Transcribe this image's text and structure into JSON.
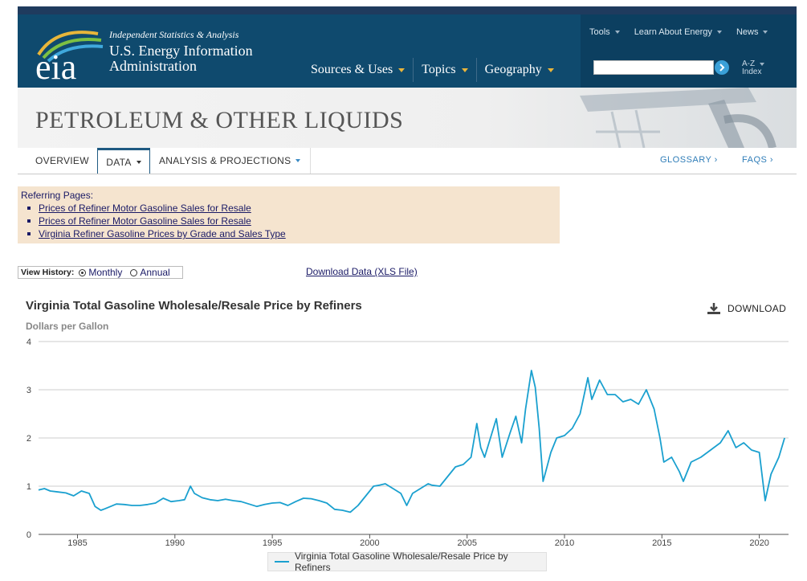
{
  "header": {
    "tagline": "Independent Statistics & Analysis",
    "org_name": "U.S. Energy Information Administration",
    "logo_text": "eia",
    "nav": [
      {
        "label": "Sources & Uses"
      },
      {
        "label": "Topics"
      },
      {
        "label": "Geography"
      }
    ],
    "util_nav": [
      {
        "label": "Tools"
      },
      {
        "label": "Learn About Energy"
      },
      {
        "label": "News"
      }
    ],
    "search": {
      "value": "",
      "placeholder": ""
    },
    "az_label": "A-Z",
    "index_label": "Index"
  },
  "banner": {
    "title": "PETROLEUM & OTHER LIQUIDS"
  },
  "subnav": {
    "tabs": [
      {
        "label": "OVERVIEW"
      },
      {
        "label": "DATA"
      },
      {
        "label": "ANALYSIS & PROJECTIONS"
      }
    ],
    "links": [
      {
        "label": "GLOSSARY ›"
      },
      {
        "label": "FAQS ›"
      }
    ]
  },
  "referring": {
    "title": "Referring Pages:",
    "links": [
      "Prices of Refiner Motor Gasoline Sales for Resale",
      "Prices of Refiner Motor Gasoline Sales for Resale",
      "Virginia Refiner Gasoline Prices by Grade and Sales Type"
    ]
  },
  "view_history": {
    "label": "View History:",
    "options": [
      "Monthly",
      "Annual"
    ],
    "selected": "Monthly"
  },
  "download_data_label": "Download Data (XLS File)",
  "download_button_label": "DOWNLOAD",
  "colors": {
    "header_bg": "#0f4a6e",
    "line": "#1aa0cf",
    "ref_bg": "#f5e4cf",
    "link": "#1a1a66"
  },
  "chart_data": {
    "type": "line",
    "title": "Virginia Total Gasoline Wholesale/Resale Price by Refiners",
    "subtitle": "Dollars per Gallon",
    "xlabel": "",
    "ylabel": "",
    "ylim": [
      0,
      4
    ],
    "xlim": [
      1983,
      2021.5
    ],
    "y_ticks": [
      "0",
      "1",
      "2",
      "3",
      "4"
    ],
    "x_ticks": [
      "1985",
      "1990",
      "1995",
      "2000",
      "2005",
      "2010",
      "2015",
      "2020"
    ],
    "grid": true,
    "legend_position": "bottom",
    "series": [
      {
        "name": "Virginia Total Gasoline Wholesale/Resale Price by Refiners",
        "x": [
          1983.0,
          1983.3,
          1983.6,
          1984.0,
          1984.4,
          1984.8,
          1985.2,
          1985.6,
          1985.9,
          1986.2,
          1986.4,
          1986.7,
          1987.0,
          1987.4,
          1987.8,
          1988.2,
          1988.6,
          1989.0,
          1989.4,
          1989.8,
          1990.2,
          1990.5,
          1990.8,
          1991.0,
          1991.4,
          1991.8,
          1992.2,
          1992.6,
          1993.0,
          1993.4,
          1993.8,
          1994.2,
          1994.6,
          1995.0,
          1995.4,
          1995.8,
          1996.2,
          1996.6,
          1997.0,
          1997.4,
          1997.8,
          1998.2,
          1998.6,
          1999.0,
          1999.4,
          1999.8,
          2000.2,
          2000.5,
          2000.8,
          2001.2,
          2001.6,
          2001.9,
          2002.2,
          2002.6,
          2003.0,
          2003.2,
          2003.6,
          2004.0,
          2004.4,
          2004.8,
          2005.2,
          2005.5,
          2005.7,
          2005.9,
          2006.2,
          2006.5,
          2006.8,
          2007.2,
          2007.5,
          2007.8,
          2008.0,
          2008.3,
          2008.5,
          2008.7,
          2008.9,
          2009.0,
          2009.3,
          2009.6,
          2010.0,
          2010.4,
          2010.8,
          2011.2,
          2011.4,
          2011.8,
          2012.2,
          2012.6,
          2013.0,
          2013.4,
          2013.8,
          2014.2,
          2014.6,
          2014.9,
          2015.1,
          2015.5,
          2015.9,
          2016.1,
          2016.5,
          2017.0,
          2017.5,
          2018.0,
          2018.4,
          2018.8,
          2019.2,
          2019.6,
          2020.0,
          2020.3,
          2020.6,
          2021.0,
          2021.3
        ],
        "values": [
          0.92,
          0.95,
          0.9,
          0.88,
          0.86,
          0.8,
          0.9,
          0.85,
          0.58,
          0.5,
          0.53,
          0.58,
          0.63,
          0.62,
          0.6,
          0.6,
          0.62,
          0.65,
          0.75,
          0.68,
          0.7,
          0.72,
          1.0,
          0.85,
          0.76,
          0.72,
          0.7,
          0.73,
          0.7,
          0.68,
          0.63,
          0.58,
          0.62,
          0.65,
          0.66,
          0.6,
          0.68,
          0.75,
          0.74,
          0.7,
          0.65,
          0.52,
          0.5,
          0.46,
          0.6,
          0.8,
          1.0,
          1.02,
          1.05,
          0.95,
          0.85,
          0.6,
          0.85,
          0.95,
          1.05,
          1.02,
          1.0,
          1.2,
          1.4,
          1.45,
          1.6,
          2.3,
          1.8,
          1.6,
          2.0,
          2.4,
          1.6,
          2.1,
          2.45,
          1.9,
          2.6,
          3.4,
          3.05,
          2.2,
          1.1,
          1.25,
          1.7,
          2.0,
          2.05,
          2.2,
          2.5,
          3.25,
          2.8,
          3.2,
          2.9,
          2.9,
          2.75,
          2.8,
          2.7,
          3.0,
          2.6,
          2.0,
          1.5,
          1.6,
          1.3,
          1.1,
          1.5,
          1.6,
          1.75,
          1.9,
          2.15,
          1.8,
          1.9,
          1.75,
          1.7,
          0.7,
          1.25,
          1.6,
          2.0
        ]
      }
    ]
  }
}
